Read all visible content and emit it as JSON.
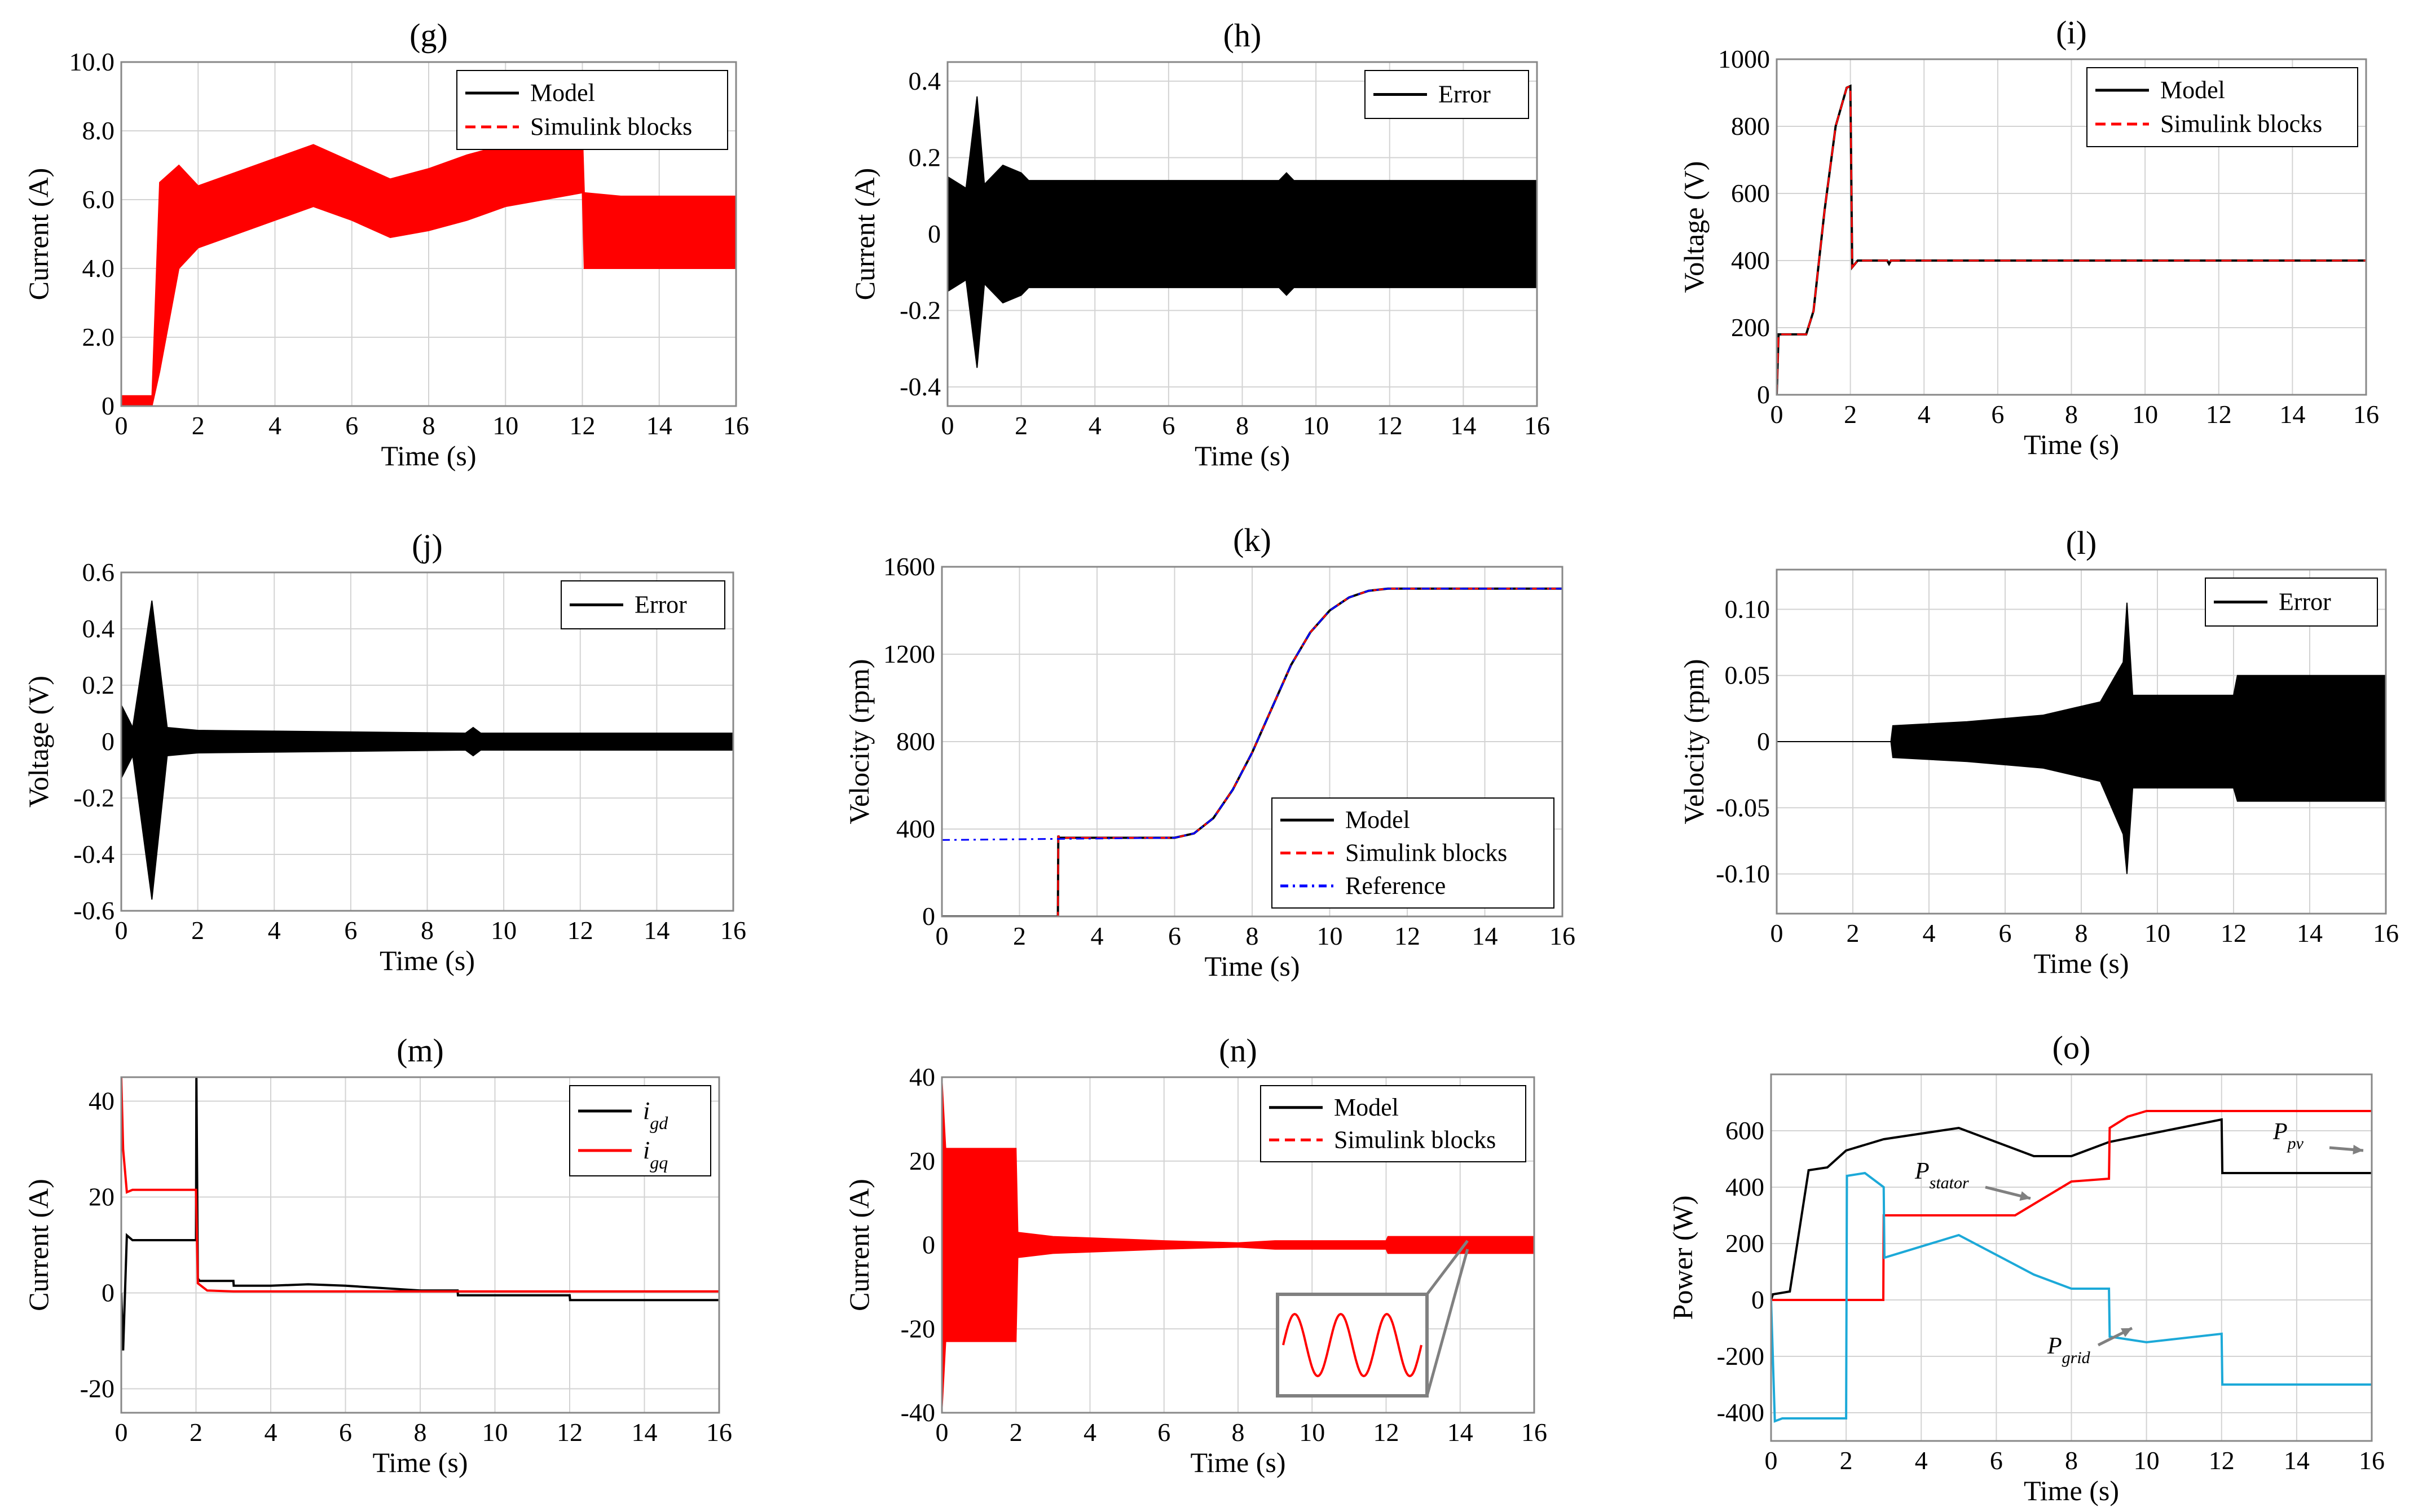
{
  "chart_data": [
    {
      "id": "g",
      "type": "line",
      "title": "(g)",
      "xlabel": "Time (s)",
      "ylabel": "Current (A)",
      "xlim": [
        0,
        16
      ],
      "ylim": [
        0,
        10
      ],
      "xticks": [
        "0",
        "2",
        "4",
        "6",
        "8",
        "10",
        "12",
        "14",
        "16"
      ],
      "xtick_values": [
        0,
        2,
        4,
        6,
        8,
        10,
        12,
        14,
        16
      ],
      "yticks": [
        "0",
        "2.0",
        "4.0",
        "6.0",
        "8.0",
        "10.0"
      ],
      "ytick_values": [
        0,
        2,
        4,
        6,
        8,
        10
      ],
      "grid": true,
      "legend_position": "top-right",
      "series": [
        {
          "name": "Model",
          "color": "#000000",
          "style": "solid"
        },
        {
          "name": "Simulink blocks",
          "color": "#ff0000",
          "style": "dashed",
          "x": [
            0,
            0.8,
            1.0,
            1.5,
            2.0,
            3,
            4,
            5,
            6,
            7,
            8,
            9,
            10,
            11,
            12,
            12.05,
            13,
            14,
            16
          ],
          "upper": [
            0.3,
            0.3,
            6.5,
            7.0,
            6.4,
            6.8,
            7.2,
            7.6,
            7.1,
            6.6,
            6.9,
            7.3,
            7.6,
            7.8,
            8.0,
            6.2,
            6.1,
            6.1,
            6.1
          ],
          "lower": [
            0,
            0,
            1.0,
            4.0,
            4.6,
            5.0,
            5.4,
            5.8,
            5.4,
            4.9,
            5.1,
            5.4,
            5.8,
            6.0,
            6.2,
            4.0,
            4.0,
            4.0,
            4.0
          ]
        }
      ]
    },
    {
      "id": "h",
      "type": "line",
      "title": "(h)",
      "xlabel": "Time (s)",
      "ylabel": "Current (A)",
      "xlim": [
        0,
        16
      ],
      "ylim": [
        -0.45,
        0.45
      ],
      "xticks": [
        "0",
        "2",
        "4",
        "6",
        "8",
        "10",
        "12",
        "14",
        "16"
      ],
      "xtick_values": [
        0,
        2,
        4,
        6,
        8,
        10,
        12,
        14,
        16
      ],
      "yticks": [
        "-0.4",
        "-0.2",
        "0",
        "0.2",
        "0.4"
      ],
      "ytick_values": [
        -0.4,
        -0.2,
        0,
        0.2,
        0.4
      ],
      "grid": true,
      "legend_position": "top-right",
      "series": [
        {
          "name": "Error",
          "color": "#000000",
          "style": "solid",
          "x": [
            0,
            0.5,
            0.8,
            1.0,
            1.5,
            2.0,
            2.2,
            9.0,
            9.2,
            9.4,
            16
          ],
          "upper": [
            0.15,
            0.12,
            0.36,
            0.13,
            0.18,
            0.16,
            0.14,
            0.14,
            0.16,
            0.14,
            0.14
          ],
          "lower": [
            -0.15,
            -0.12,
            -0.35,
            -0.13,
            -0.18,
            -0.16,
            -0.14,
            -0.14,
            -0.16,
            -0.14,
            -0.14
          ]
        }
      ]
    },
    {
      "id": "i",
      "type": "line",
      "title": "(i)",
      "xlabel": "Time (s)",
      "ylabel": "Voltage (V)",
      "xlim": [
        0,
        16
      ],
      "ylim": [
        0,
        1000
      ],
      "xticks": [
        "0",
        "2",
        "4",
        "6",
        "8",
        "10",
        "12",
        "14",
        "16"
      ],
      "xtick_values": [
        0,
        2,
        4,
        6,
        8,
        10,
        12,
        14,
        16
      ],
      "yticks": [
        "0",
        "200",
        "400",
        "600",
        "800",
        "1000"
      ],
      "ytick_values": [
        0,
        200,
        400,
        600,
        800,
        1000
      ],
      "grid": true,
      "legend_position": "top-right",
      "series": [
        {
          "name": "Model",
          "color": "#000000",
          "style": "solid",
          "x": [
            0,
            0.05,
            0.8,
            1.0,
            1.3,
            1.6,
            1.9,
            2.0,
            2.05,
            2.2,
            3,
            3.05,
            3.1,
            16
          ],
          "y": [
            0,
            180,
            180,
            250,
            550,
            800,
            915,
            920,
            380,
            400,
            400,
            390,
            400,
            400
          ]
        },
        {
          "name": "Simulink blocks",
          "color": "#ff0000",
          "style": "dashed",
          "x": [
            0,
            0.05,
            0.8,
            1.0,
            1.3,
            1.6,
            1.9,
            2.0,
            2.05,
            2.2,
            3,
            3.05,
            3.1,
            16
          ],
          "y": [
            0,
            180,
            180,
            250,
            550,
            800,
            915,
            920,
            380,
            400,
            400,
            390,
            400,
            400
          ]
        }
      ]
    },
    {
      "id": "j",
      "type": "line",
      "title": "(j)",
      "xlabel": "Time (s)",
      "ylabel": "Voltage (V)",
      "xlim": [
        0,
        16
      ],
      "ylim": [
        -0.6,
        0.6
      ],
      "xticks": [
        "0",
        "2",
        "4",
        "6",
        "8",
        "10",
        "12",
        "14",
        "16"
      ],
      "xtick_values": [
        0,
        2,
        4,
        6,
        8,
        10,
        12,
        14,
        16
      ],
      "yticks": [
        "-0.6",
        "-0.4",
        "-0.2",
        "0",
        "0.2",
        "0.4",
        "0.6"
      ],
      "ytick_values": [
        -0.6,
        -0.4,
        -0.2,
        0,
        0.2,
        0.4,
        0.6
      ],
      "grid": true,
      "legend_position": "top-right",
      "series": [
        {
          "name": "Error",
          "color": "#000000",
          "style": "solid",
          "x": [
            0,
            0.3,
            0.8,
            1.2,
            2.0,
            9.0,
            9.2,
            9.4,
            16
          ],
          "upper": [
            0.13,
            0.05,
            0.5,
            0.05,
            0.04,
            0.03,
            0.05,
            0.03,
            0.03
          ],
          "lower": [
            -0.13,
            -0.05,
            -0.56,
            -0.05,
            -0.04,
            -0.03,
            -0.05,
            -0.03,
            -0.03
          ]
        }
      ]
    },
    {
      "id": "k",
      "type": "line",
      "title": "(k)",
      "xlabel": "Time (s)",
      "ylabel": "Velocity (rpm)",
      "xlim": [
        0,
        16
      ],
      "ylim": [
        0,
        1600
      ],
      "xticks": [
        "0",
        "2",
        "4",
        "6",
        "8",
        "10",
        "12",
        "14",
        "16"
      ],
      "xtick_values": [
        0,
        2,
        4,
        6,
        8,
        10,
        12,
        14,
        16
      ],
      "yticks": [
        "0",
        "400",
        "800",
        "1200",
        "1600"
      ],
      "ytick_values": [
        0,
        400,
        800,
        1200,
        1600
      ],
      "grid": true,
      "legend_position": "bottom-right",
      "series": [
        {
          "name": "Model",
          "color": "#000000",
          "style": "solid",
          "x": [
            0,
            2.99,
            3.0,
            3.02,
            6.0,
            6.5,
            7.0,
            7.5,
            8.0,
            8.5,
            9.0,
            9.5,
            10.0,
            10.5,
            11.0,
            11.5,
            12.0,
            16
          ],
          "y": [
            0,
            0,
            370,
            360,
            360,
            380,
            450,
            580,
            750,
            950,
            1150,
            1300,
            1400,
            1460,
            1490,
            1500,
            1500,
            1500
          ]
        },
        {
          "name": "Simulink blocks",
          "color": "#ff0000",
          "style": "dashed",
          "x": [
            0,
            2.99,
            3.0,
            3.02,
            6.0,
            6.5,
            7.0,
            7.5,
            8.0,
            8.5,
            9.0,
            9.5,
            10.0,
            10.5,
            11.0,
            11.5,
            12.0,
            16
          ],
          "y": [
            0,
            0,
            370,
            360,
            360,
            380,
            450,
            580,
            750,
            950,
            1150,
            1300,
            1400,
            1460,
            1490,
            1500,
            1500,
            1500
          ]
        },
        {
          "name": "Reference",
          "color": "#0000ff",
          "style": "dashdot",
          "x": [
            0,
            6.0,
            6.5,
            7.0,
            7.5,
            8.0,
            8.5,
            9.0,
            9.5,
            10.0,
            10.5,
            11.0,
            11.5,
            12.0,
            16
          ],
          "y": [
            350,
            360,
            380,
            450,
            580,
            750,
            950,
            1150,
            1300,
            1400,
            1460,
            1490,
            1500,
            1500,
            1500
          ]
        }
      ]
    },
    {
      "id": "l",
      "type": "line",
      "title": "(l)",
      "xlabel": "Time (s)",
      "ylabel": "Velocity (rpm)",
      "xlim": [
        0,
        16
      ],
      "ylim": [
        -0.13,
        0.13
      ],
      "xticks": [
        "0",
        "2",
        "4",
        "6",
        "8",
        "10",
        "12",
        "14",
        "16"
      ],
      "xtick_values": [
        0,
        2,
        4,
        6,
        8,
        10,
        12,
        14,
        16
      ],
      "yticks": [
        "-0.10",
        "-0.05",
        "0",
        "0.05",
        "0.10"
      ],
      "ytick_values": [
        -0.1,
        -0.05,
        0,
        0.05,
        0.1
      ],
      "grid": true,
      "legend_position": "top-right",
      "series": [
        {
          "name": "Error",
          "color": "#000000",
          "style": "solid",
          "x": [
            0,
            3.0,
            3.05,
            5,
            7,
            8.5,
            9.1,
            9.2,
            9.35,
            10,
            12,
            12.1,
            16
          ],
          "upper": [
            0,
            0,
            0.012,
            0.015,
            0.02,
            0.03,
            0.06,
            0.105,
            0.035,
            0.035,
            0.035,
            0.05,
            0.05
          ],
          "lower": [
            0,
            0,
            -0.012,
            -0.015,
            -0.02,
            -0.03,
            -0.07,
            -0.1,
            -0.035,
            -0.035,
            -0.035,
            -0.045,
            -0.045
          ]
        }
      ]
    },
    {
      "id": "m",
      "type": "line",
      "title": "(m)",
      "xlabel": "Time (s)",
      "ylabel": "Current (A)",
      "xlim": [
        0,
        16
      ],
      "ylim": [
        -25,
        45
      ],
      "xticks": [
        "0",
        "2",
        "4",
        "6",
        "8",
        "10",
        "12",
        "14",
        "16"
      ],
      "xtick_values": [
        0,
        2,
        4,
        6,
        8,
        10,
        12,
        14,
        16
      ],
      "yticks": [
        "-20",
        "0",
        "20",
        "40"
      ],
      "ytick_values": [
        -20,
        0,
        20,
        40
      ],
      "grid": true,
      "legend_position": "top-right",
      "series": [
        {
          "name": "i_gd",
          "label_main": "i",
          "label_sub": "gd",
          "color": "#000000",
          "style": "solid",
          "x": [
            0,
            0.05,
            0.15,
            0.3,
            2.0,
            2.01,
            2.05,
            2.1,
            3.0,
            3.01,
            4,
            5,
            6,
            7,
            8,
            9,
            9.01,
            12,
            12.01,
            16
          ],
          "y": [
            0,
            -12,
            12,
            11,
            11,
            45,
            3,
            2.5,
            2.5,
            1.5,
            1.5,
            1.8,
            1.5,
            1,
            0.5,
            0.5,
            -0.5,
            -0.5,
            -1.5,
            -1.5
          ]
        },
        {
          "name": "i_gq",
          "label_main": "i",
          "label_sub": "gq",
          "color": "#ff0000",
          "style": "solid",
          "x": [
            0,
            0.05,
            0.15,
            0.3,
            2.0,
            2.05,
            2.3,
            3,
            16
          ],
          "y": [
            45,
            30,
            21,
            21.5,
            21.5,
            2,
            0.5,
            0.3,
            0.3
          ]
        }
      ]
    },
    {
      "id": "n",
      "type": "line",
      "title": "(n)",
      "xlabel": "Time (s)",
      "ylabel": "Current (A)",
      "xlim": [
        0,
        16
      ],
      "ylim": [
        -40,
        40
      ],
      "xticks": [
        "0",
        "2",
        "4",
        "6",
        "8",
        "10",
        "12",
        "14",
        "16"
      ],
      "xtick_values": [
        0,
        2,
        4,
        6,
        8,
        10,
        12,
        14,
        16
      ],
      "yticks": [
        "-40",
        "-20",
        "0",
        "20",
        "40"
      ],
      "ytick_values": [
        -40,
        -20,
        0,
        20,
        40
      ],
      "grid": true,
      "legend_position": "top-right",
      "series": [
        {
          "name": "Model",
          "color": "#000000",
          "style": "solid"
        },
        {
          "name": "Simulink blocks",
          "color": "#ff0000",
          "style": "dashed",
          "x": [
            0,
            0.1,
            2.0,
            2.05,
            3,
            6,
            8,
            9,
            12,
            12.05,
            16
          ],
          "upper": [
            40,
            23,
            23,
            3,
            2,
            1,
            0.5,
            1,
            1,
            2,
            2
          ],
          "lower": [
            -40,
            -23,
            -23,
            -3,
            -2,
            -1,
            -0.5,
            -1,
            -1,
            -2,
            -2
          ]
        }
      ],
      "inset_box_color": "#808080"
    },
    {
      "id": "o",
      "type": "line",
      "title": "(o)",
      "xlabel": "Time (s)",
      "ylabel": "Power (W)",
      "xlim": [
        0,
        16
      ],
      "ylim": [
        -500,
        800
      ],
      "xticks": [
        "0",
        "2",
        "4",
        "6",
        "8",
        "10",
        "12",
        "14",
        "16"
      ],
      "xtick_values": [
        0,
        2,
        4,
        6,
        8,
        10,
        12,
        14,
        16
      ],
      "yticks": [
        "-400",
        "-200",
        "0",
        "200",
        "400",
        "600"
      ],
      "ytick_values": [
        -400,
        -200,
        0,
        200,
        400,
        600
      ],
      "grid": true,
      "annotations": [
        {
          "main": "P",
          "sub": "pv"
        },
        {
          "main": "P",
          "sub": "stator"
        },
        {
          "main": "P",
          "sub": "grid"
        }
      ],
      "series": [
        {
          "name": "P_pv",
          "color": "#000000",
          "style": "solid",
          "x": [
            0,
            0.05,
            0.5,
            1.0,
            1.5,
            2.0,
            2.5,
            3.0,
            5.0,
            7.0,
            8.0,
            9.0,
            12.0,
            12.02,
            16
          ],
          "y": [
            0,
            20,
            30,
            460,
            470,
            530,
            550,
            570,
            610,
            510,
            510,
            560,
            640,
            450,
            450
          ]
        },
        {
          "name": "P_stator",
          "color": "#ff0000",
          "style": "solid",
          "x": [
            0,
            2.99,
            3.0,
            3.1,
            6.5,
            7.0,
            8.0,
            9.0,
            9.02,
            9.5,
            10,
            12,
            16
          ],
          "y": [
            0,
            0,
            300,
            300,
            300,
            340,
            420,
            430,
            610,
            650,
            670,
            670,
            670
          ]
        },
        {
          "name": "P_grid",
          "color": "#1ca9d8",
          "style": "solid",
          "x": [
            0,
            0.1,
            0.3,
            2.0,
            2.02,
            2.5,
            3.0,
            3.02,
            5.0,
            7.0,
            8.0,
            9.0,
            9.02,
            10,
            12,
            12.02,
            16
          ],
          "y": [
            0,
            -430,
            -420,
            -420,
            440,
            450,
            400,
            150,
            230,
            90,
            40,
            40,
            -130,
            -150,
            -120,
            -300,
            -300
          ]
        }
      ]
    }
  ]
}
